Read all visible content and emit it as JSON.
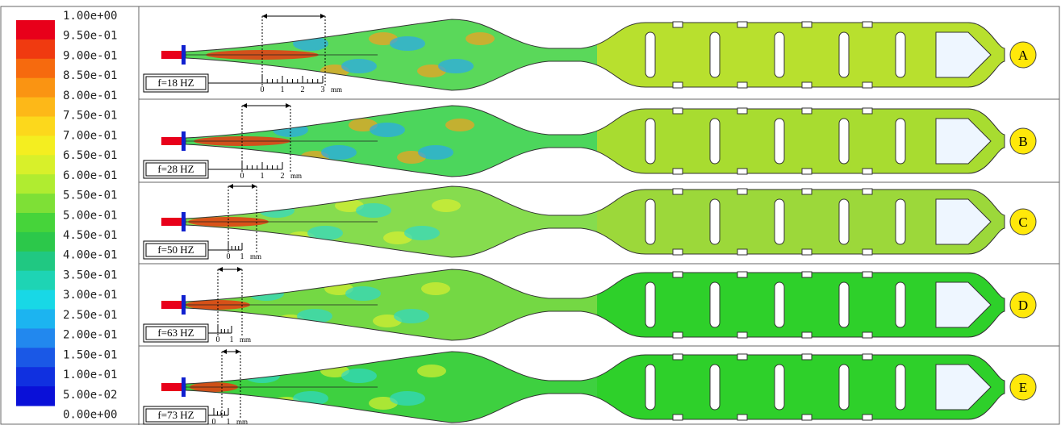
{
  "colorbar": {
    "labels": [
      "1.00e+00",
      "9.50e-01",
      "9.00e-01",
      "8.50e-01",
      "8.00e-01",
      "7.50e-01",
      "7.00e-01",
      "6.50e-01",
      "6.00e-01",
      "5.50e-01",
      "5.00e-01",
      "4.50e-01",
      "4.00e-01",
      "3.50e-01",
      "3.00e-01",
      "2.50e-01",
      "2.00e-01",
      "1.50e-01",
      "1.00e-01",
      "5.00e-02",
      "0.00e+00"
    ]
  },
  "panels": [
    {
      "label": "A",
      "frequency": "f=18 HZ",
      "scale": {
        "ticks": [
          "0",
          "1",
          "2",
          "3"
        ],
        "unit": "mm"
      }
    },
    {
      "label": "B",
      "frequency": "f=28 HZ",
      "scale": {
        "ticks": [
          "0",
          "1",
          "2"
        ],
        "unit": "mm"
      }
    },
    {
      "label": "C",
      "frequency": "f=50 HZ",
      "scale": {
        "ticks": [
          "0",
          "1"
        ],
        "unit": "mm"
      }
    },
    {
      "label": "D",
      "frequency": "f=63 HZ",
      "scale": {
        "ticks": [
          "0",
          "1"
        ],
        "unit": "mm"
      }
    },
    {
      "label": "E",
      "frequency": "f=73 HZ",
      "scale": {
        "ticks": [
          "0",
          "1"
        ],
        "unit": "mm"
      }
    }
  ]
}
